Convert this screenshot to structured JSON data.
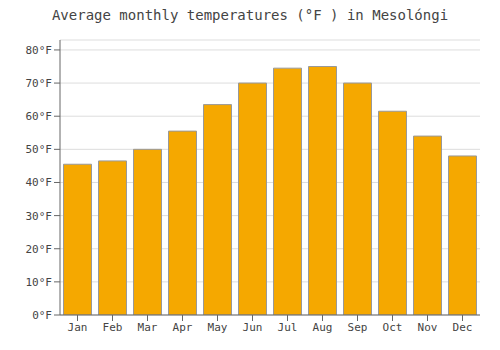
{
  "chart_data": {
    "type": "bar",
    "title": "Average monthly temperatures (°F ) in Mesolóngi",
    "categories": [
      "Jan",
      "Feb",
      "Mar",
      "Apr",
      "May",
      "Jun",
      "Jul",
      "Aug",
      "Sep",
      "Oct",
      "Nov",
      "Dec"
    ],
    "values": [
      45.5,
      46.5,
      50.0,
      55.5,
      63.5,
      70.0,
      74.5,
      75.0,
      70.0,
      61.5,
      54.0,
      48.0
    ],
    "color": "#F5A800",
    "ylim": [
      0,
      83
    ],
    "yticks": [
      {
        "value": 0,
        "label": "0°F"
      },
      {
        "value": 10,
        "label": "10°F"
      },
      {
        "value": 20,
        "label": "20°F"
      },
      {
        "value": 30,
        "label": "30°F"
      },
      {
        "value": 40,
        "label": "40°F"
      },
      {
        "value": 50,
        "label": "50°F"
      },
      {
        "value": 60,
        "label": "60°F"
      },
      {
        "value": 70,
        "label": "70°F"
      },
      {
        "value": 80,
        "label": "80°F"
      }
    ],
    "grid": true
  }
}
